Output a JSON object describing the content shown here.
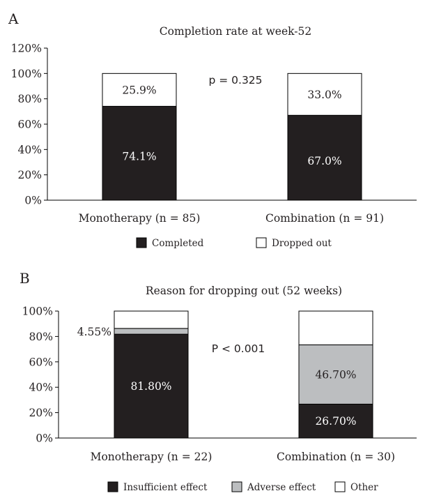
{
  "colors": {
    "completed": "#231f20",
    "dropped": "#ffffff",
    "insufficient": "#231f20",
    "adverse": "#bcbec0",
    "other": "#ffffff",
    "axis": "#000000",
    "text": "#231f20"
  },
  "chart_data": [
    {
      "panel_label": "A",
      "type": "bar",
      "stacked": true,
      "title": "Completion rate at week-52",
      "categories": [
        "Monotherapy (n = 85)",
        "Combination (n = 91)"
      ],
      "series": [
        {
          "name": "Completed",
          "values": [
            74.1,
            67.0
          ],
          "labels": [
            "74.1%",
            "67.0%"
          ],
          "color_key": "completed"
        },
        {
          "name": "Dropped out",
          "values": [
            25.9,
            33.0
          ],
          "labels": [
            "25.9%",
            "33.0%"
          ],
          "color_key": "dropped"
        }
      ],
      "ylim": [
        0,
        120
      ],
      "yticks": [
        "0%",
        "20%",
        "40%",
        "60%",
        "80%",
        "100%",
        "120%"
      ],
      "annotation": "p = 0.325",
      "legend_position": "bottom"
    },
    {
      "panel_label": "B",
      "type": "bar",
      "stacked": true,
      "title": "Reason for dropping out (52 weeks)",
      "categories": [
        "Monotherapy (n = 22)",
        "Combination (n = 30)"
      ],
      "series": [
        {
          "name": "Insufficient effect",
          "values": [
            81.8,
            26.7
          ],
          "labels": [
            "81.80%",
            "26.70%"
          ],
          "color_key": "insufficient"
        },
        {
          "name": "Adverse effect",
          "values": [
            4.55,
            46.7
          ],
          "labels": [
            "4.55%",
            "46.70%"
          ],
          "color_key": "adverse"
        },
        {
          "name": "Other",
          "values": [
            13.65,
            26.6
          ],
          "labels": [
            "",
            ""
          ],
          "color_key": "other"
        }
      ],
      "ylim": [
        0,
        100
      ],
      "yticks": [
        "0%",
        "20%",
        "40%",
        "60%",
        "80%",
        "100%"
      ],
      "annotation": "P < 0.001",
      "legend_position": "bottom"
    }
  ]
}
